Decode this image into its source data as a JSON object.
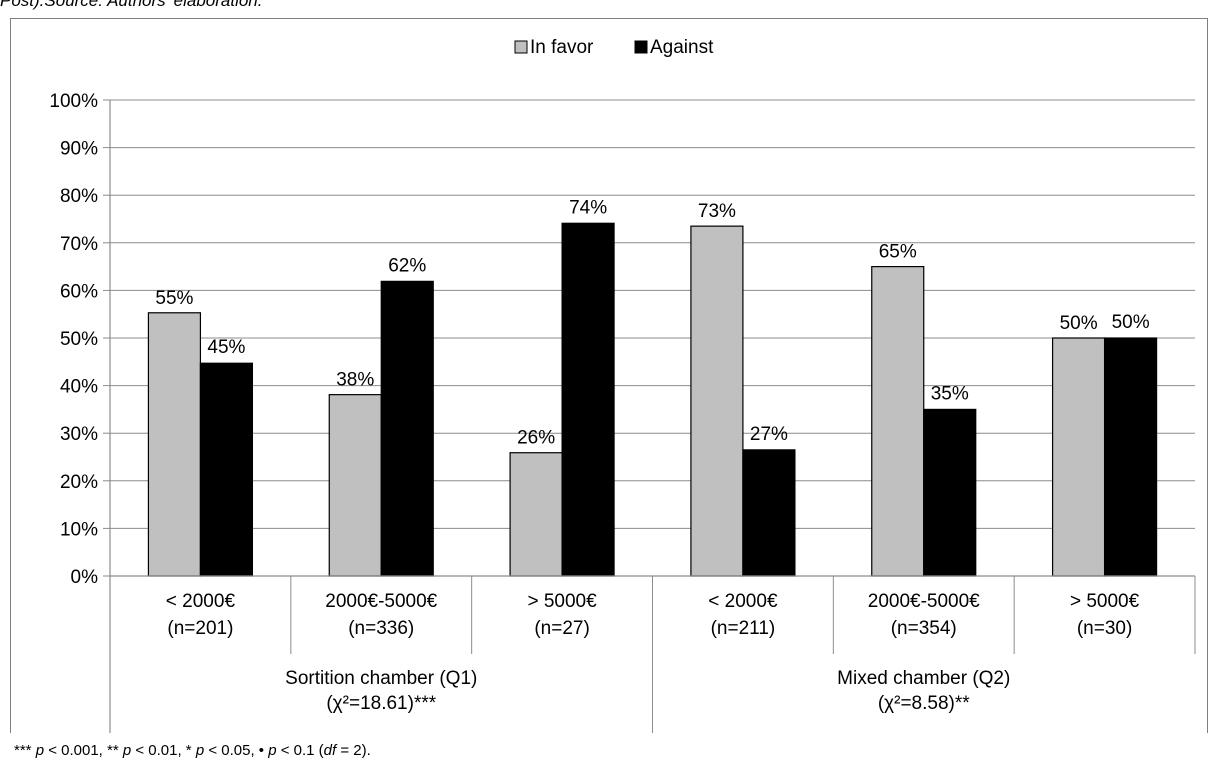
{
  "caption": {
    "text": "Post).Source: Authors' elaboration."
  },
  "footnote": {
    "part1": "*** ",
    "p1": "p",
    "part2": " < 0.001,  ** ",
    "p2": "p",
    "part3": " < 0.01, * ",
    "p3": "p",
    "part4": " < 0.05, • ",
    "p4": "p",
    "part5": " < 0.1 (",
    "df": "df",
    "part6": " = 2)."
  },
  "chart_data": {
    "type": "bar",
    "title": "",
    "xlabel": "",
    "ylabel": "",
    "ylim": [
      0,
      100
    ],
    "yticks": [
      "0%",
      "10%",
      "20%",
      "30%",
      "40%",
      "50%",
      "60%",
      "70%",
      "80%",
      "90%",
      "100%"
    ],
    "grid": true,
    "legend_position": "top-center",
    "categories": [
      [
        "< 2000€",
        "(n=201)"
      ],
      [
        "2000€-5000€",
        "(n=336)"
      ],
      [
        "> 5000€",
        "(n=27)"
      ],
      [
        "< 2000€",
        "(n=211)"
      ],
      [
        "2000€-5000€",
        "(n=354)"
      ],
      [
        "> 5000€",
        "(n=30)"
      ]
    ],
    "groups": [
      {
        "label": [
          "Sortition chamber (Q1)",
          "(χ²=18.61)***"
        ],
        "span": [
          0,
          2
        ]
      },
      {
        "label": [
          "Mixed chamber (Q2)",
          "(χ²=8.58)**"
        ],
        "span": [
          3,
          5
        ]
      }
    ],
    "series": [
      {
        "name": "In favor",
        "color": "#c0c0c0",
        "values": [
          55.3,
          38.1,
          25.9,
          73.5,
          65.0,
          50.0
        ],
        "labels": [
          "55%",
          "38%",
          "26%",
          "73%",
          "65%",
          "50%"
        ]
      },
      {
        "name": "Against",
        "color": "#000000",
        "values": [
          44.7,
          61.9,
          74.1,
          26.5,
          35.0,
          50.0
        ],
        "labels": [
          "45%",
          "62%",
          "74%",
          "27%",
          "35%",
          "50%"
        ]
      }
    ]
  }
}
